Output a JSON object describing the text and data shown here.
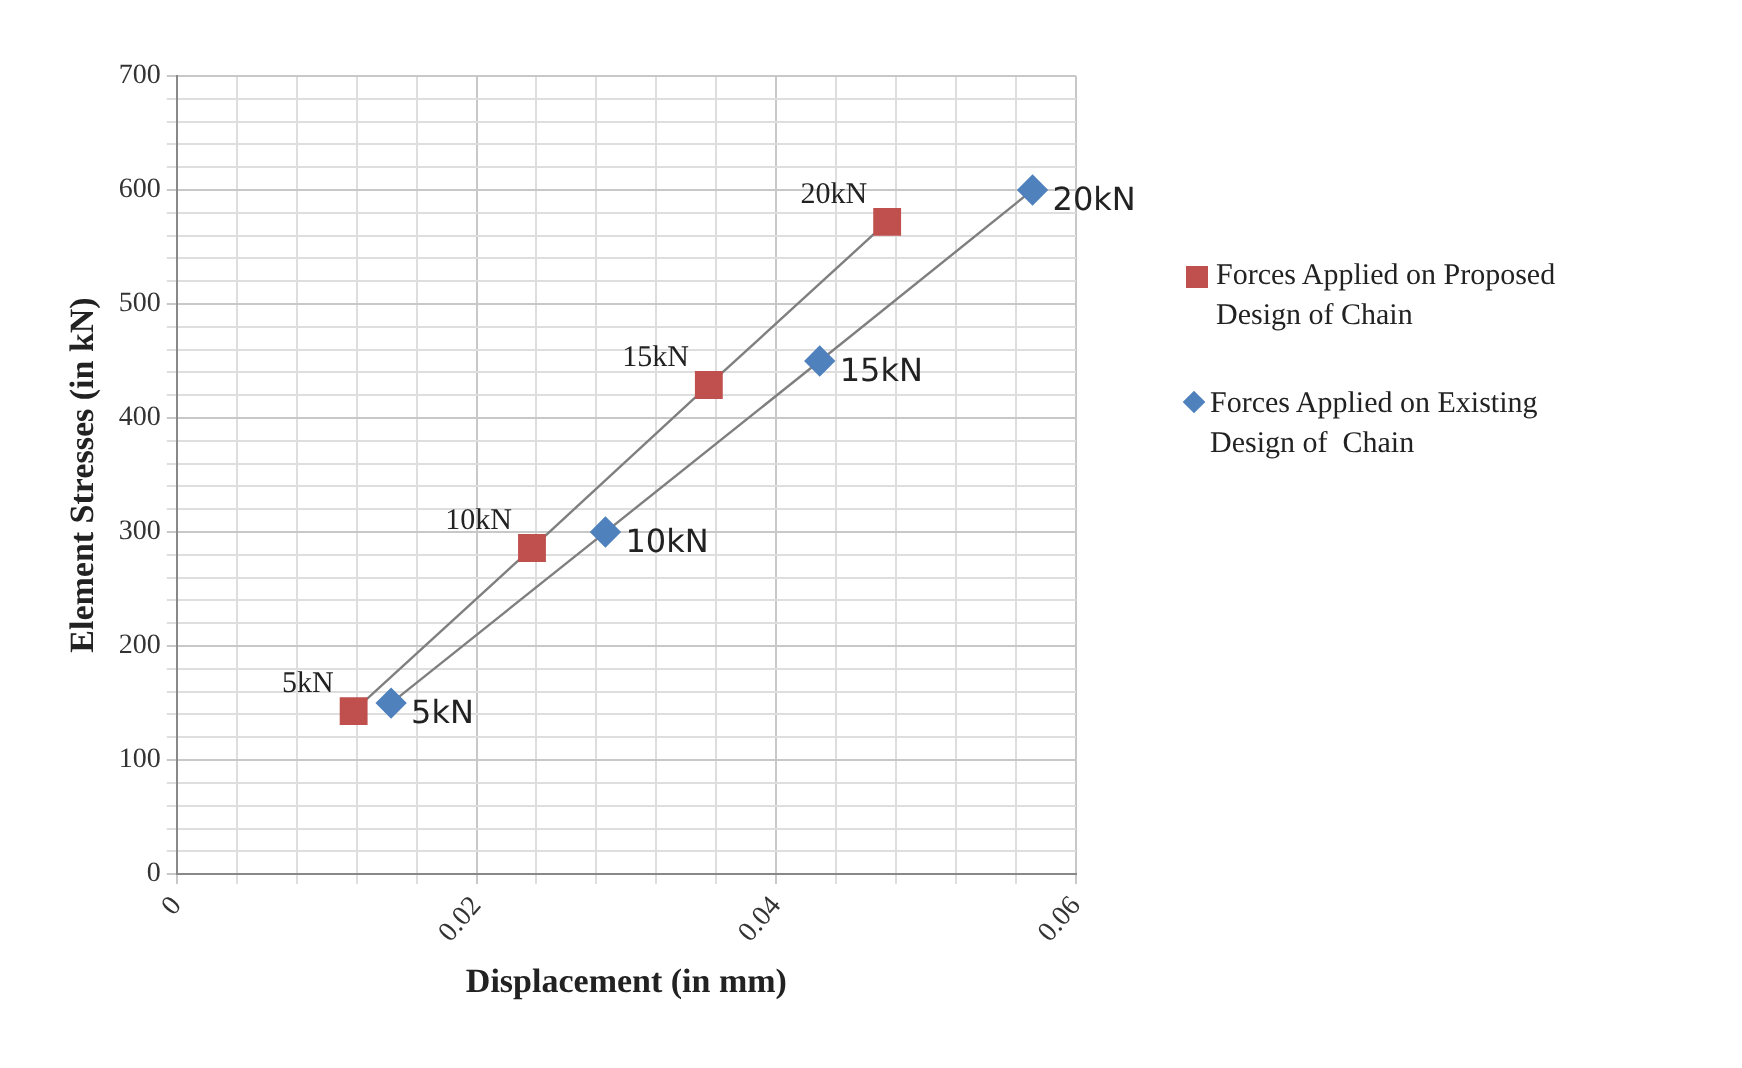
{
  "chart_data": {
    "type": "scatter",
    "xlabel": "Displacement (in mm)",
    "ylabel": "Element Stresses (in kN)",
    "series": [
      {
        "name": "Forces Applied on Proposed Design of Chain",
        "color": "#c0504d",
        "marker": "square",
        "x": [
          0.0118,
          0.0237,
          0.0355,
          0.0474
        ],
        "values": [
          143,
          286,
          429,
          572
        ]
      },
      {
        "name": "Forces Applied on Existing Design of  Chain",
        "color": "#4f81bd",
        "marker": "diamond",
        "x": [
          0.0143,
          0.0286,
          0.0429,
          0.0571
        ],
        "values": [
          150,
          300,
          450,
          600
        ]
      }
    ],
    "annotations": [
      {
        "text": "5kN",
        "x": 0.0118,
        "y": 143
      },
      {
        "text": "10kN",
        "x": 0.0237,
        "y": 286
      },
      {
        "text": "15kN",
        "x": 0.0355,
        "y": 429
      },
      {
        "text": "20kN",
        "x": 0.0474,
        "y": 572
      },
      {
        "text": "5kN",
        "x": 0.0143,
        "y": 150
      },
      {
        "text": "10kN",
        "x": 0.0286,
        "y": 300
      },
      {
        "text": "15kN",
        "x": 0.0429,
        "y": 450
      },
      {
        "text": "20kN",
        "x": 0.0571,
        "y": 600
      }
    ],
    "xlim": [
      0,
      0.06
    ],
    "xticks": [
      0,
      {
        "value": 0.004,
        "label": null
      },
      {
        "value": 0.008,
        "label": null
      },
      {
        "value": 0.012,
        "label": null
      },
      {
        "value": 0.016,
        "label": null
      },
      {
        "value": 0.02,
        "label": "0.02"
      },
      {
        "value": 0.024,
        "label": null
      },
      {
        "value": 0.028,
        "label": null
      },
      {
        "value": 0.032,
        "label": null
      },
      {
        "value": 0.036,
        "label": null
      },
      {
        "value": 0.04,
        "label": "0.04"
      },
      {
        "value": 0.044,
        "label": null
      },
      {
        "value": 0.048,
        "label": null
      },
      {
        "value": 0.052,
        "label": null
      },
      {
        "value": 0.056,
        "label": null
      },
      {
        "value": 0.06,
        "label": "0.06"
      }
    ],
    "ylim": [
      0,
      700
    ],
    "yticks": [
      0,
      {
        "value": 20,
        "label": null
      },
      {
        "value": 40,
        "label": null
      },
      {
        "value": 60,
        "label": null
      },
      {
        "value": 80,
        "label": null
      },
      100,
      {
        "value": 120,
        "label": null
      },
      {
        "value": 140,
        "label": null
      },
      {
        "value": 160,
        "label": null
      },
      {
        "value": 180,
        "label": null
      },
      200,
      {
        "value": 220,
        "label": null
      },
      {
        "value": 240,
        "label": null
      },
      {
        "value": 260,
        "label": null
      },
      {
        "value": 280,
        "label": null
      },
      300,
      {
        "value": 320,
        "label": null
      },
      {
        "value": 340,
        "label": null
      },
      {
        "value": 360,
        "label": null
      },
      {
        "value": 380,
        "label": null
      },
      400,
      {
        "value": 420,
        "label": null
      },
      {
        "value": 440,
        "label": null
      },
      {
        "value": 460,
        "label": null
      },
      {
        "value": 480,
        "label": null
      },
      500,
      {
        "value": 520,
        "label": null
      },
      {
        "value": 540,
        "label": null
      },
      {
        "value": 560,
        "label": null
      },
      {
        "value": 580,
        "label": null
      },
      600,
      {
        "value": 620,
        "label": null
      },
      {
        "value": 640,
        "label": null
      },
      {
        "value": 660,
        "label": null
      },
      {
        "value": 680,
        "label": null
      },
      700
    ],
    "grid": true,
    "legend": "right",
    "line_style": "solid"
  }
}
